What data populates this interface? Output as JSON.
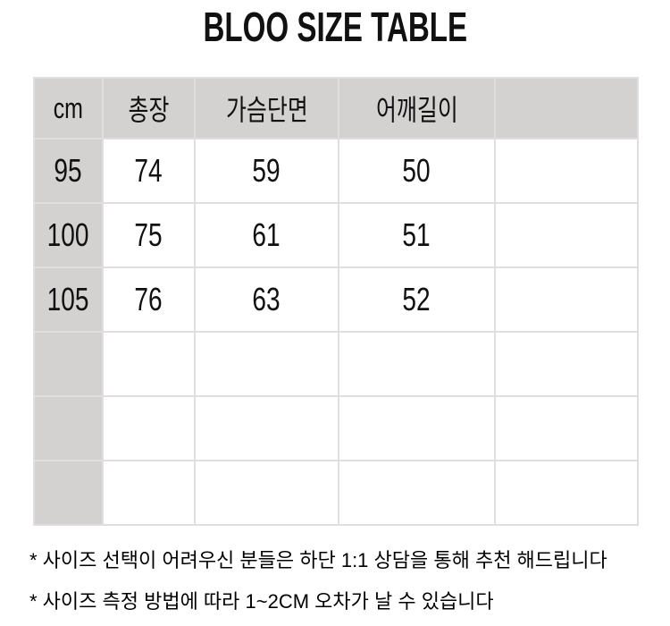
{
  "title": "BLOO SIZE TABLE",
  "size_table": {
    "unit_header": "cm",
    "column_headers": [
      "총장",
      "가슴단면",
      "어깨길이",
      ""
    ],
    "rows": [
      {
        "size": "95",
        "values": [
          "74",
          "59",
          "50",
          ""
        ]
      },
      {
        "size": "100",
        "values": [
          "75",
          "61",
          "51",
          ""
        ]
      },
      {
        "size": "105",
        "values": [
          "76",
          "63",
          "52",
          ""
        ]
      },
      {
        "size": "",
        "values": [
          "",
          "",
          "",
          ""
        ]
      },
      {
        "size": "",
        "values": [
          "",
          "",
          "",
          ""
        ]
      },
      {
        "size": "",
        "values": [
          "",
          "",
          "",
          ""
        ]
      }
    ]
  },
  "footnotes": {
    "line1": "* 사이즈 선택이 어려우신 분들은 하단 1:1 상담을 통해 추천 해드립니다",
    "line2": "* 사이즈 측정 방법에 따라 1~2CM 오차가 날 수 있습니다"
  },
  "colors": {
    "page_bg": "#ffffff",
    "header_bg": "#d4d1d1",
    "border": "#e0dede",
    "text": "#111111"
  }
}
